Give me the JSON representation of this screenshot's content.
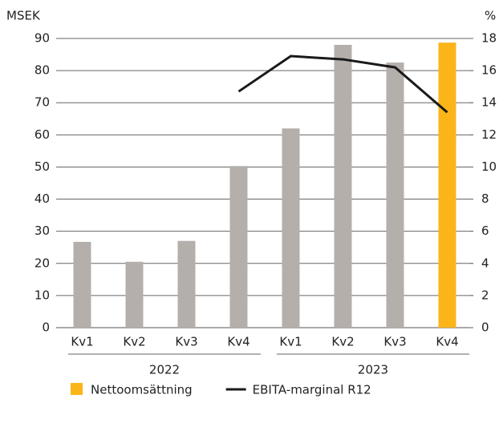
{
  "chart_data": {
    "type": "bar",
    "y_label": "MSEK",
    "y2_label": "%",
    "categories": [
      "Kv1",
      "Kv2",
      "Kv3",
      "Kv4",
      "Kv1",
      "Kv2",
      "Kv3",
      "Kv4"
    ],
    "groups": [
      {
        "label": "2022",
        "size": 4
      },
      {
        "label": "2023",
        "size": 4
      }
    ],
    "series": [
      {
        "name": "Nettoomsättning",
        "type": "bar",
        "color": "#fbb519",
        "colors": [
          "#b4afab",
          "#b4afab",
          "#b4afab",
          "#b4afab",
          "#b4afab",
          "#b4afab",
          "#b4afab",
          "#fbb519"
        ],
        "values": [
          26.7,
          20.5,
          27,
          50.3,
          62,
          88,
          82.5,
          88.7
        ]
      },
      {
        "name": "EBITA-marginal R12",
        "type": "line",
        "axis": "y2",
        "color": "#1a1a1a",
        "values": [
          null,
          null,
          null,
          14.7,
          16.9,
          16.7,
          16.2,
          13.4
        ]
      }
    ],
    "ylim": [
      0,
      90
    ],
    "yticks": [
      0,
      10,
      20,
      30,
      40,
      50,
      60,
      70,
      80,
      90
    ],
    "y2lim": [
      0,
      18
    ],
    "y2ticks": [
      0,
      2,
      4,
      6,
      8,
      10,
      12,
      14,
      16,
      18
    ],
    "grid": true,
    "legend": "bottom"
  }
}
